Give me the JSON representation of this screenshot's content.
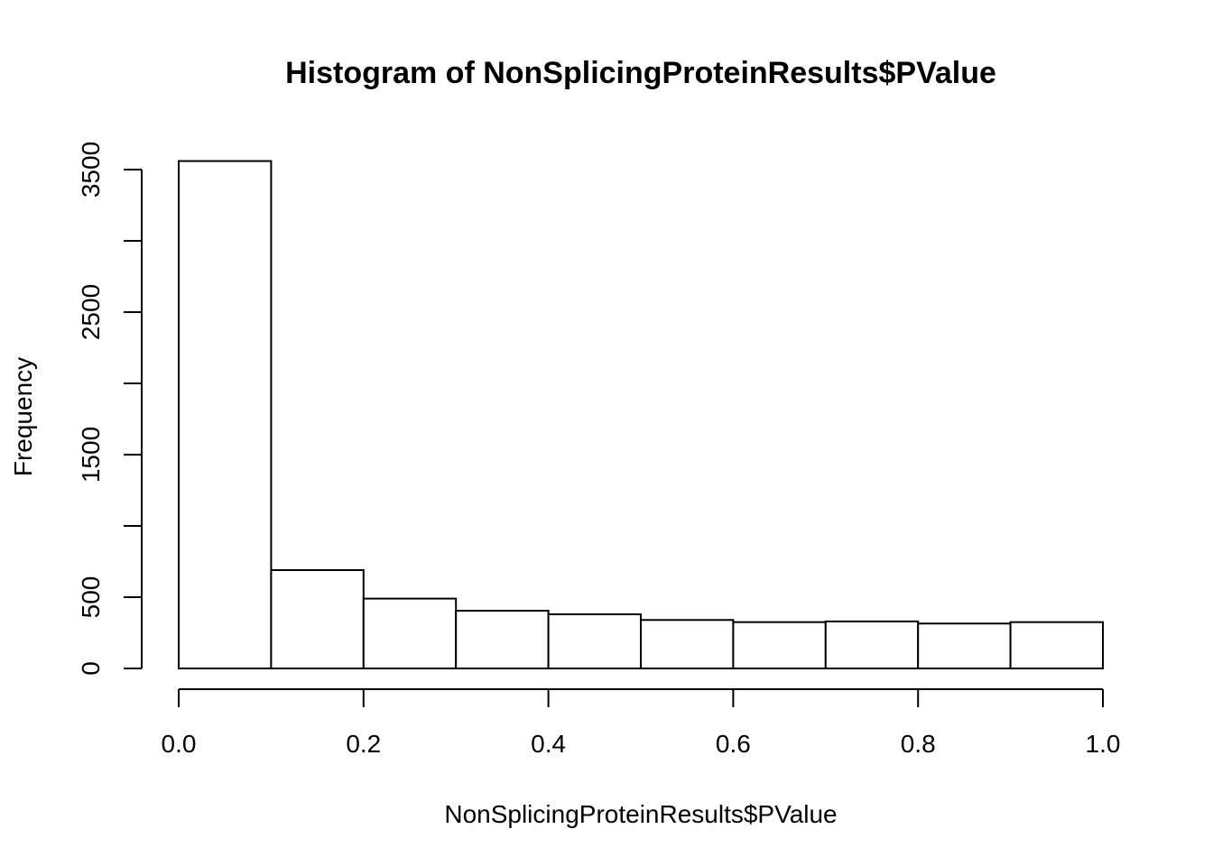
{
  "chart_data": {
    "type": "bar",
    "title": "Histogram of NonSplicingProteinResults$PValue",
    "xlabel": "NonSplicingProteinResults$PValue",
    "ylabel": "Frequency",
    "bin_edges": [
      0.0,
      0.1,
      0.2,
      0.3,
      0.4,
      0.5,
      0.6,
      0.7,
      0.8,
      0.9,
      1.0
    ],
    "values": [
      3560,
      690,
      490,
      405,
      380,
      340,
      325,
      330,
      315,
      325
    ],
    "xlim": [
      0,
      1
    ],
    "ylim": [
      0,
      3500
    ],
    "x_ticks": [
      "0.0",
      "0.2",
      "0.4",
      "0.6",
      "0.8",
      "1.0"
    ],
    "x_tick_values": [
      0,
      0.2,
      0.4,
      0.6,
      0.8,
      1.0
    ],
    "y_ticks": [
      "0",
      "500",
      "1500",
      "2500",
      "3500"
    ],
    "y_tick_values": [
      0,
      500,
      1000,
      1500,
      2000,
      2500,
      3000,
      3500
    ],
    "y_tick_labeled": [
      0,
      500,
      1500,
      2500,
      3500
    ],
    "bar_fill": "#ffffff",
    "bar_stroke": "#000000",
    "grid": false,
    "legend": "none"
  }
}
